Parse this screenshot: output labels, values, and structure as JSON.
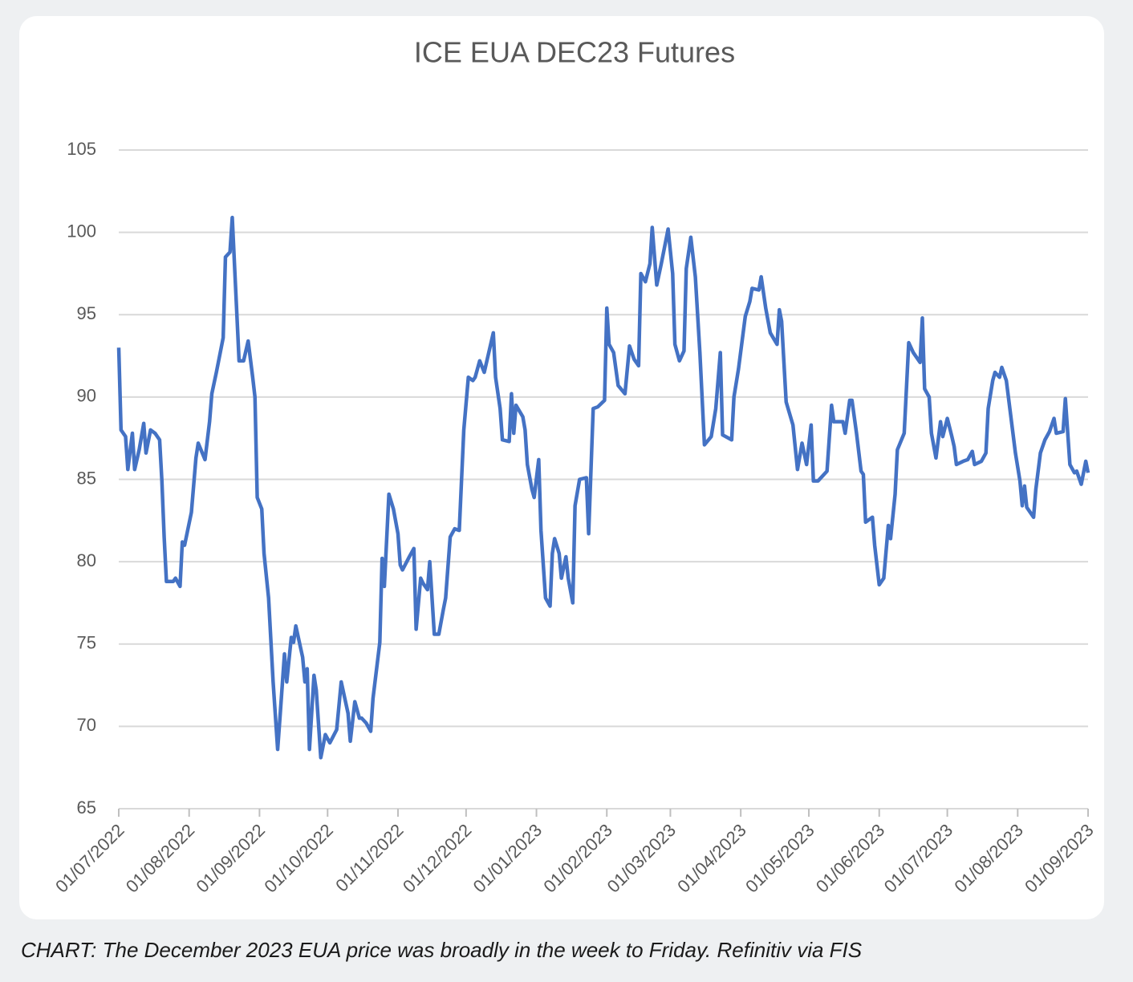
{
  "chart_data": {
    "type": "line",
    "title": "ICE EUA DEC23 Futures",
    "caption": "CHART: The December 2023 EUA price was broadly in the week to Friday. Refinitiv via FIS",
    "x": [
      "2022-07-01",
      "2022-07-02",
      "2022-07-04",
      "2022-07-05",
      "2022-07-07",
      "2022-07-08",
      "2022-07-10",
      "2022-07-12",
      "2022-07-13",
      "2022-07-15",
      "2022-07-17",
      "2022-07-19",
      "2022-07-20",
      "2022-07-21",
      "2022-07-22",
      "2022-07-25",
      "2022-07-26",
      "2022-07-28",
      "2022-07-29",
      "2022-07-30",
      "2022-08-02",
      "2022-08-04",
      "2022-08-05",
      "2022-08-08",
      "2022-08-10",
      "2022-08-11",
      "2022-08-13",
      "2022-08-16",
      "2022-08-17",
      "2022-08-19",
      "2022-08-20",
      "2022-08-21",
      "2022-08-23",
      "2022-08-25",
      "2022-08-27",
      "2022-08-29",
      "2022-08-30",
      "2022-08-31",
      "2022-09-02",
      "2022-09-03",
      "2022-09-05",
      "2022-09-07",
      "2022-09-09",
      "2022-09-10",
      "2022-09-12",
      "2022-09-13",
      "2022-09-15",
      "2022-09-16",
      "2022-09-17",
      "2022-09-20",
      "2022-09-21",
      "2022-09-22",
      "2022-09-23",
      "2022-09-25",
      "2022-09-26",
      "2022-09-28",
      "2022-09-30",
      "2022-10-02",
      "2022-10-05",
      "2022-10-07",
      "2022-10-10",
      "2022-10-11",
      "2022-10-13",
      "2022-10-15",
      "2022-10-16",
      "2022-10-18",
      "2022-10-20",
      "2022-10-21",
      "2022-10-24",
      "2022-10-25",
      "2022-10-26",
      "2022-10-28",
      "2022-10-30",
      "2022-11-01",
      "2022-11-02",
      "2022-11-03",
      "2022-11-06",
      "2022-11-08",
      "2022-11-09",
      "2022-11-11",
      "2022-11-12",
      "2022-11-14",
      "2022-11-15",
      "2022-11-17",
      "2022-11-19",
      "2022-11-21",
      "2022-11-22",
      "2022-11-24",
      "2022-11-26",
      "2022-11-28",
      "2022-11-30",
      "2022-12-02",
      "2022-12-04",
      "2022-12-05",
      "2022-12-07",
      "2022-12-09",
      "2022-12-11",
      "2022-12-13",
      "2022-12-14",
      "2022-12-16",
      "2022-12-17",
      "2022-12-20",
      "2022-12-21",
      "2022-12-22",
      "2022-12-23",
      "2022-12-26",
      "2022-12-27",
      "2022-12-28",
      "2022-12-30",
      "2022-12-31",
      "2023-01-02",
      "2023-01-03",
      "2023-01-05",
      "2023-01-07",
      "2023-01-08",
      "2023-01-09",
      "2023-01-11",
      "2023-01-12",
      "2023-01-14",
      "2023-01-15",
      "2023-01-17",
      "2023-01-18",
      "2023-01-20",
      "2023-01-23",
      "2023-01-24",
      "2023-01-26",
      "2023-01-28",
      "2023-01-31",
      "2023-02-01",
      "2023-02-02",
      "2023-02-04",
      "2023-02-06",
      "2023-02-09",
      "2023-02-11",
      "2023-02-13",
      "2023-02-15",
      "2023-02-16",
      "2023-02-18",
      "2023-02-20",
      "2023-02-21",
      "2023-02-23",
      "2023-02-25",
      "2023-02-28",
      "2023-03-02",
      "2023-03-03",
      "2023-03-05",
      "2023-03-07",
      "2023-03-08",
      "2023-03-10",
      "2023-03-12",
      "2023-03-14",
      "2023-03-16",
      "2023-03-19",
      "2023-03-21",
      "2023-03-23",
      "2023-03-24",
      "2023-03-28",
      "2023-03-29",
      "2023-03-31",
      "2023-04-03",
      "2023-04-05",
      "2023-04-06",
      "2023-04-09",
      "2023-04-10",
      "2023-04-12",
      "2023-04-14",
      "2023-04-17",
      "2023-04-18",
      "2023-04-19",
      "2023-04-21",
      "2023-04-24",
      "2023-04-26",
      "2023-04-28",
      "2023-04-30",
      "2023-05-02",
      "2023-05-03",
      "2023-05-05",
      "2023-05-09",
      "2023-05-11",
      "2023-05-12",
      "2023-05-16",
      "2023-05-17",
      "2023-05-19",
      "2023-05-20",
      "2023-05-22",
      "2023-05-24",
      "2023-05-25",
      "2023-05-26",
      "2023-05-29",
      "2023-05-30",
      "2023-06-01",
      "2023-06-03",
      "2023-06-05",
      "2023-06-06",
      "2023-06-08",
      "2023-06-09",
      "2023-06-12",
      "2023-06-14",
      "2023-06-16",
      "2023-06-19",
      "2023-06-20",
      "2023-06-21",
      "2023-06-23",
      "2023-06-24",
      "2023-06-26",
      "2023-06-28",
      "2023-06-29",
      "2023-07-01",
      "2023-07-03",
      "2023-07-04",
      "2023-07-05",
      "2023-07-08",
      "2023-07-10",
      "2023-07-12",
      "2023-07-13",
      "2023-07-16",
      "2023-07-18",
      "2023-07-19",
      "2023-07-21",
      "2023-07-22",
      "2023-07-24",
      "2023-07-25",
      "2023-07-27",
      "2023-07-29",
      "2023-07-31",
      "2023-08-02",
      "2023-08-03",
      "2023-08-04",
      "2023-08-05",
      "2023-08-08",
      "2023-08-09",
      "2023-08-11",
      "2023-08-13",
      "2023-08-15",
      "2023-08-17",
      "2023-08-18",
      "2023-08-21",
      "2023-08-22",
      "2023-08-24",
      "2023-08-26",
      "2023-08-27",
      "2023-08-29",
      "2023-08-31",
      "2023-09-01"
    ],
    "series": [
      {
        "name": "ICE EUA DEC23",
        "color": "#4472c4",
        "values": [
          93.0,
          88.0,
          87.6,
          85.6,
          87.8,
          85.6,
          86.8,
          88.4,
          86.6,
          88.0,
          87.8,
          87.4,
          84.9,
          81.5,
          78.8,
          78.8,
          79.0,
          78.5,
          81.2,
          81.0,
          83.0,
          86.3,
          87.2,
          86.2,
          88.5,
          90.2,
          91.5,
          93.6,
          98.5,
          98.8,
          100.9,
          98.0,
          92.2,
          92.2,
          93.4,
          91.2,
          90.0,
          83.9,
          83.2,
          80.5,
          77.8,
          72.7,
          68.6,
          70.5,
          74.4,
          72.7,
          75.4,
          75.1,
          76.1,
          74.2,
          72.7,
          73.5,
          68.6,
          73.1,
          72.2,
          68.1,
          69.5,
          69.0,
          69.8,
          72.7,
          70.8,
          69.1,
          71.5,
          70.5,
          70.5,
          70.2,
          69.7,
          71.7,
          75.1,
          80.2,
          78.5,
          84.1,
          83.2,
          81.7,
          79.8,
          79.5,
          80.3,
          80.8,
          75.9,
          79.0,
          78.7,
          78.3,
          80.0,
          75.6,
          75.6,
          77.1,
          77.8,
          81.5,
          82.0,
          81.9,
          88.0,
          91.2,
          91.0,
          91.2,
          92.2,
          91.5,
          92.7,
          93.9,
          91.2,
          89.3,
          87.4,
          87.3,
          90.2,
          87.8,
          89.5,
          88.8,
          88.0,
          85.9,
          84.4,
          83.9,
          86.2,
          81.9,
          77.8,
          77.3,
          80.5,
          81.4,
          80.5,
          79.0,
          80.3,
          79.0,
          77.5,
          83.4,
          85.0,
          85.1,
          81.7,
          89.3,
          89.4,
          89.8,
          95.4,
          93.2,
          92.7,
          90.7,
          90.2,
          93.1,
          92.3,
          91.9,
          97.5,
          97.0,
          98.1,
          100.3,
          96.8,
          98.1,
          100.2,
          97.5,
          93.2,
          92.2,
          92.8,
          97.8,
          99.7,
          97.3,
          92.7,
          87.1,
          87.6,
          89.3,
          92.7,
          87.7,
          87.4,
          90.0,
          91.7,
          94.9,
          95.8,
          96.6,
          96.5,
          97.3,
          95.4,
          93.9,
          93.2,
          95.3,
          94.6,
          89.7,
          88.3,
          85.6,
          87.2,
          85.9,
          88.3,
          84.9,
          84.9,
          85.5,
          89.5,
          88.5,
          88.5,
          87.8,
          89.8,
          89.8,
          87.8,
          85.5,
          85.3,
          82.4,
          82.7,
          81.0,
          78.6,
          79.0,
          82.2,
          81.4,
          84.1,
          86.8,
          87.8,
          93.3,
          92.7,
          92.1,
          94.8,
          90.5,
          90.0,
          87.8,
          86.3,
          88.5,
          87.6,
          88.7,
          87.6,
          87.0,
          85.9,
          86.1,
          86.2,
          86.7,
          85.9,
          86.1,
          86.6,
          89.3,
          91.0,
          91.5,
          91.2,
          91.8,
          91.0,
          88.8,
          86.6,
          84.9,
          83.4,
          84.6,
          83.3,
          82.7,
          84.4,
          86.6,
          87.4,
          87.9,
          88.7,
          87.8,
          87.9,
          89.9,
          85.9,
          85.4,
          85.5,
          84.7,
          86.1,
          85.4
        ]
      }
    ],
    "xlim": [
      "2022-07-01",
      "2023-09-01"
    ],
    "xticks": [
      {
        "value": "2022-07-01",
        "label": "01/07/2022"
      },
      {
        "value": "2022-08-01",
        "label": "01/08/2022"
      },
      {
        "value": "2022-09-01",
        "label": "01/09/2022"
      },
      {
        "value": "2022-10-01",
        "label": "01/10/2022"
      },
      {
        "value": "2022-11-01",
        "label": "01/11/2022"
      },
      {
        "value": "2022-12-01",
        "label": "01/12/2022"
      },
      {
        "value": "2023-01-01",
        "label": "01/01/2023"
      },
      {
        "value": "2023-02-01",
        "label": "01/02/2023"
      },
      {
        "value": "2023-03-01",
        "label": "01/03/2023"
      },
      {
        "value": "2023-04-01",
        "label": "01/04/2023"
      },
      {
        "value": "2023-05-01",
        "label": "01/05/2023"
      },
      {
        "value": "2023-06-01",
        "label": "01/06/2023"
      },
      {
        "value": "2023-07-01",
        "label": "01/07/2023"
      },
      {
        "value": "2023-08-01",
        "label": "01/08/2023"
      },
      {
        "value": "2023-09-01",
        "label": "01/09/2023"
      }
    ],
    "ylim": [
      65,
      105
    ],
    "yticks": [
      65,
      70,
      75,
      80,
      85,
      90,
      95,
      100,
      105
    ],
    "grid": true
  }
}
